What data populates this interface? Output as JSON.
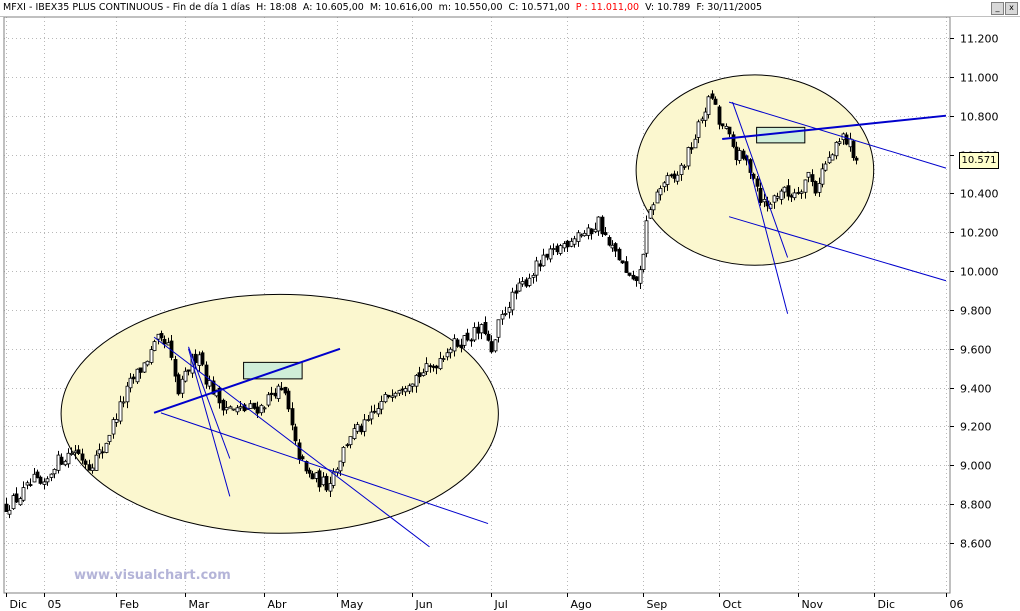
{
  "header": {
    "symbol": "MFXI - IBEX35 PLUS CONTINUOUS - Fin de día 1 días",
    "hour": "H: 18:08",
    "open": "A: 10.605,00",
    "high": "M: 10.616,00",
    "low": "m: 10.550,00",
    "close": "C: 10.571,00",
    "p": "P : 11.011,00",
    "volume": "V: 10.789",
    "date": "F: 30/11/2005"
  },
  "window_buttons": {
    "minimize": "_",
    "close": "x"
  },
  "watermark": "www.visualchart.com",
  "last_price_label": "10.571",
  "colors": {
    "candle": "#000000",
    "trendline": "#0000cc",
    "ellipse_fill": "#fbf7cf",
    "box_fill": "#cfeed8",
    "grid": "#b8b8b8",
    "header_red": "#ff0000"
  },
  "chart_data": {
    "type": "candlestick",
    "y_unit": "index points",
    "ylim": [
      8400,
      11350
    ],
    "y_ticks": [
      8600,
      8800,
      9000,
      9200,
      9400,
      9600,
      9800,
      10000,
      10200,
      10400,
      10600,
      10800,
      11000,
      11200
    ],
    "y_tick_labels": [
      "8.600",
      "8.800",
      "9.000",
      "9.200",
      "9.400",
      "9.600",
      "9.800",
      "10.000",
      "10.200",
      "10.400",
      "10.600",
      "10.800",
      "11.000",
      "11.200"
    ],
    "x_tick_labels": [
      "Dic",
      "05",
      "Feb",
      "Mar",
      "Abr",
      "May",
      "Jun",
      "Jul",
      "Ago",
      "Sep",
      "Oct",
      "Nov",
      "Dic",
      "06"
    ],
    "x_tick_index": [
      0,
      11,
      32,
      52,
      75,
      96,
      118,
      141,
      163,
      185,
      207,
      230,
      252,
      273
    ],
    "bars": 274,
    "last_close": 10571,
    "path": [
      [
        0,
        8790
      ],
      [
        4,
        8840
      ],
      [
        8,
        8920
      ],
      [
        11,
        8880
      ],
      [
        14,
        9010
      ],
      [
        20,
        9080
      ],
      [
        24,
        9000
      ],
      [
        28,
        9080
      ],
      [
        32,
        9260
      ],
      [
        36,
        9420
      ],
      [
        40,
        9520
      ],
      [
        44,
        9640
      ],
      [
        47,
        9610
      ],
      [
        50,
        9370
      ],
      [
        53,
        9500
      ],
      [
        56,
        9590
      ],
      [
        58,
        9450
      ],
      [
        62,
        9330
      ],
      [
        66,
        9280
      ],
      [
        70,
        9290
      ],
      [
        74,
        9300
      ],
      [
        78,
        9390
      ],
      [
        81,
        9360
      ],
      [
        84,
        9100
      ],
      [
        87,
        8960
      ],
      [
        90,
        8930
      ],
      [
        93,
        8900
      ],
      [
        96,
        9000
      ],
      [
        100,
        9160
      ],
      [
        104,
        9200
      ],
      [
        108,
        9290
      ],
      [
        112,
        9390
      ],
      [
        116,
        9430
      ],
      [
        120,
        9470
      ],
      [
        124,
        9510
      ],
      [
        128,
        9600
      ],
      [
        132,
        9640
      ],
      [
        136,
        9680
      ],
      [
        139,
        9700
      ],
      [
        141,
        9560
      ],
      [
        143,
        9720
      ],
      [
        146,
        9840
      ],
      [
        150,
        9930
      ],
      [
        154,
        10020
      ],
      [
        158,
        10080
      ],
      [
        162,
        10140
      ],
      [
        166,
        10200
      ],
      [
        169,
        10190
      ],
      [
        172,
        10260
      ],
      [
        175,
        10130
      ],
      [
        178,
        10070
      ],
      [
        180,
        9980
      ],
      [
        182,
        9930
      ],
      [
        184,
        9990
      ],
      [
        186,
        10230
      ],
      [
        188,
        10360
      ],
      [
        191,
        10460
      ],
      [
        194,
        10470
      ],
      [
        197,
        10560
      ],
      [
        200,
        10690
      ],
      [
        203,
        10840
      ],
      [
        205,
        10900
      ],
      [
        207,
        10760
      ],
      [
        209,
        10720
      ],
      [
        212,
        10600
      ],
      [
        215,
        10560
      ],
      [
        217,
        10500
      ],
      [
        219,
        10380
      ],
      [
        221,
        10330
      ],
      [
        223,
        10380
      ],
      [
        225,
        10420
      ],
      [
        227,
        10390
      ],
      [
        229,
        10410
      ],
      [
        231,
        10440
      ],
      [
        233,
        10500
      ],
      [
        235,
        10420
      ],
      [
        237,
        10520
      ],
      [
        240,
        10600
      ],
      [
        243,
        10690
      ],
      [
        245,
        10650
      ],
      [
        247,
        10571
      ]
    ]
  }
}
